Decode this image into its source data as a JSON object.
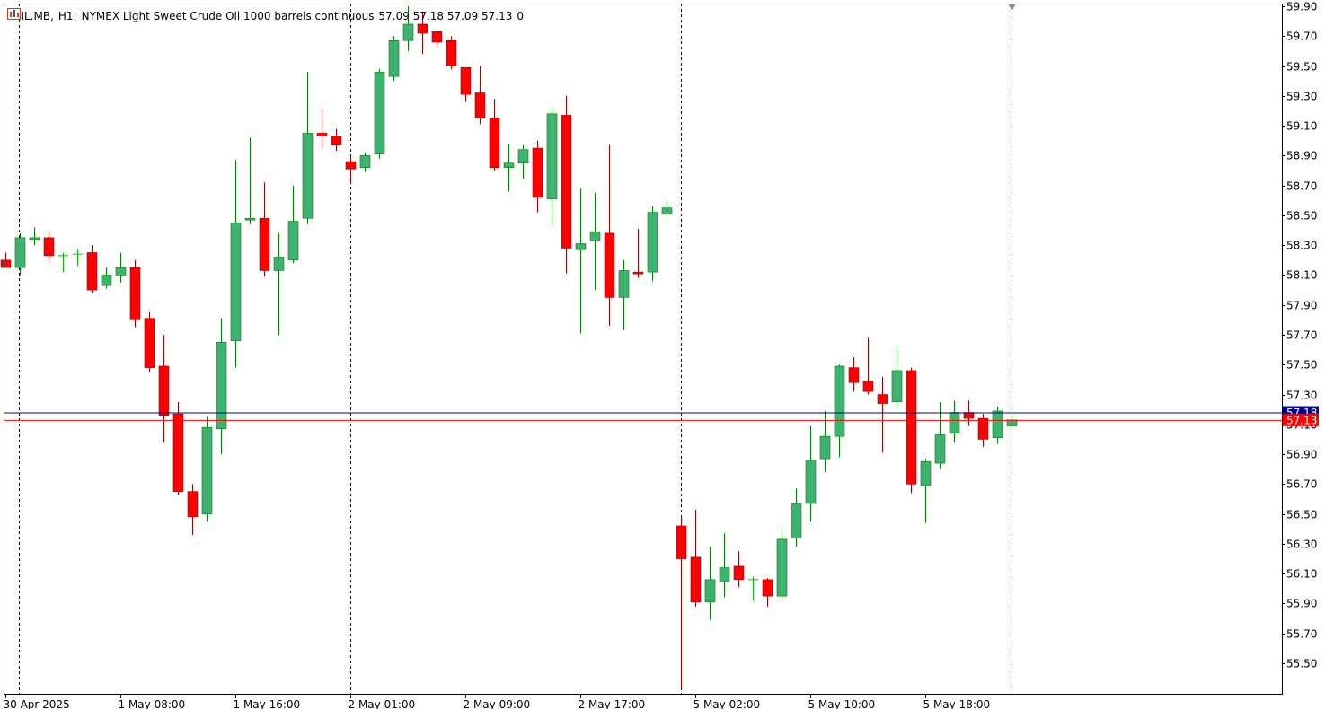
{
  "header": {
    "symbol": "OIL.MB,",
    "timeframe": "H1:",
    "description": "NYMEX Light Sweet Crude Oil 1000 barrels continuous",
    "ohlc": "57.09 57.18 57.09 57.13",
    "volume": "0",
    "icons": [
      "chart-window-icon",
      "indicator-list-icon"
    ]
  },
  "colors": {
    "background": "#ffffff",
    "bull_body": "#3cb371",
    "bear_body": "#ff0000",
    "wick_up": "#008000",
    "wick_down": "#a00000",
    "doji": "#00c000",
    "bid_line": "#ff0000",
    "ask_line": "#00008b",
    "axis": "#000000",
    "separator": "#000000"
  },
  "chart_data": {
    "type": "candlestick",
    "symbol": "OIL.MB",
    "timeframe": "H1",
    "ylim": [
      55.36,
      59.9
    ],
    "y_ticks": [
      "59.90",
      "59.70",
      "59.50",
      "59.30",
      "59.10",
      "58.90",
      "58.70",
      "58.50",
      "58.30",
      "58.10",
      "57.90",
      "57.70",
      "57.50",
      "57.30",
      "57.10",
      "56.90",
      "56.70",
      "56.50",
      "56.30",
      "56.10",
      "55.90",
      "55.70",
      "55.50"
    ],
    "x_ticks": [
      {
        "index": 0,
        "label": "30 Apr 2025"
      },
      {
        "index": 8,
        "label": "1 May 08:00"
      },
      {
        "index": 16,
        "label": "1 May 16:00"
      },
      {
        "index": 24,
        "label": "2 May 01:00"
      },
      {
        "index": 32,
        "label": "2 May 09:00"
      },
      {
        "index": 40,
        "label": "2 May 17:00"
      },
      {
        "index": 48,
        "label": "5 May 02:00"
      },
      {
        "index": 56,
        "label": "5 May 10:00"
      },
      {
        "index": 64,
        "label": "5 May 18:00"
      }
    ],
    "period_separators": [
      1,
      24,
      47,
      70
    ],
    "bid_price": {
      "value": 57.13,
      "label": "57.13"
    },
    "ask_price": {
      "value": 57.18,
      "label": "57.18"
    },
    "candles": [
      {
        "o": 58.2,
        "h": 58.25,
        "l": 58.15,
        "c": 58.15
      },
      {
        "o": 58.15,
        "h": 58.38,
        "l": 58.1,
        "c": 58.35
      },
      {
        "o": 58.34,
        "h": 58.42,
        "l": 58.3,
        "c": 58.35
      },
      {
        "o": 58.35,
        "h": 58.4,
        "l": 58.18,
        "c": 58.23
      },
      {
        "o": 58.23,
        "h": 58.25,
        "l": 58.12,
        "c": 58.23
      },
      {
        "o": 58.24,
        "h": 58.27,
        "l": 58.16,
        "c": 58.24
      },
      {
        "o": 58.25,
        "h": 58.3,
        "l": 57.98,
        "c": 58.0
      },
      {
        "o": 58.03,
        "h": 58.15,
        "l": 58.01,
        "c": 58.1
      },
      {
        "o": 58.1,
        "h": 58.25,
        "l": 58.05,
        "c": 58.15
      },
      {
        "o": 58.15,
        "h": 58.2,
        "l": 57.75,
        "c": 57.8
      },
      {
        "o": 57.81,
        "h": 57.85,
        "l": 57.45,
        "c": 57.48
      },
      {
        "o": 57.49,
        "h": 57.7,
        "l": 56.98,
        "c": 57.16
      },
      {
        "o": 57.17,
        "h": 57.25,
        "l": 56.63,
        "c": 56.65
      },
      {
        "o": 56.65,
        "h": 56.7,
        "l": 56.36,
        "c": 56.48
      },
      {
        "o": 56.5,
        "h": 57.15,
        "l": 56.45,
        "c": 57.08
      },
      {
        "o": 57.07,
        "h": 57.81,
        "l": 56.9,
        "c": 57.65
      },
      {
        "o": 57.66,
        "h": 58.87,
        "l": 57.48,
        "c": 58.45
      },
      {
        "o": 58.47,
        "h": 59.02,
        "l": 58.44,
        "c": 58.48
      },
      {
        "o": 58.48,
        "h": 58.72,
        "l": 58.09,
        "c": 58.13
      },
      {
        "o": 58.13,
        "h": 58.38,
        "l": 57.7,
        "c": 58.22
      },
      {
        "o": 58.2,
        "h": 58.7,
        "l": 58.18,
        "c": 58.46
      },
      {
        "o": 58.48,
        "h": 59.46,
        "l": 58.44,
        "c": 59.05
      },
      {
        "o": 59.05,
        "h": 59.2,
        "l": 58.95,
        "c": 59.03
      },
      {
        "o": 59.03,
        "h": 59.08,
        "l": 58.93,
        "c": 58.97
      },
      {
        "o": 58.86,
        "h": 58.9,
        "l": 58.71,
        "c": 58.81
      },
      {
        "o": 58.82,
        "h": 58.92,
        "l": 58.79,
        "c": 58.9
      },
      {
        "o": 58.91,
        "h": 59.48,
        "l": 58.88,
        "c": 59.46
      },
      {
        "o": 59.43,
        "h": 59.7,
        "l": 59.4,
        "c": 59.67
      },
      {
        "o": 59.67,
        "h": 59.9,
        "l": 59.6,
        "c": 59.78
      },
      {
        "o": 59.78,
        "h": 59.86,
        "l": 59.58,
        "c": 59.72
      },
      {
        "o": 59.73,
        "h": 59.73,
        "l": 59.62,
        "c": 59.66
      },
      {
        "o": 59.67,
        "h": 59.7,
        "l": 59.48,
        "c": 59.5
      },
      {
        "o": 59.49,
        "h": 59.48,
        "l": 59.26,
        "c": 59.31
      },
      {
        "o": 59.32,
        "h": 59.5,
        "l": 59.11,
        "c": 59.15
      },
      {
        "o": 59.15,
        "h": 59.28,
        "l": 58.8,
        "c": 58.82
      },
      {
        "o": 58.82,
        "h": 58.98,
        "l": 58.66,
        "c": 58.85
      },
      {
        "o": 58.85,
        "h": 58.97,
        "l": 58.74,
        "c": 58.94
      },
      {
        "o": 58.95,
        "h": 59.0,
        "l": 58.52,
        "c": 58.62
      },
      {
        "o": 58.61,
        "h": 59.22,
        "l": 58.43,
        "c": 59.18
      },
      {
        "o": 59.17,
        "h": 59.3,
        "l": 58.11,
        "c": 58.28
      },
      {
        "o": 58.27,
        "h": 58.68,
        "l": 57.71,
        "c": 58.31
      },
      {
        "o": 58.33,
        "h": 58.65,
        "l": 58.0,
        "c": 58.39
      },
      {
        "o": 58.38,
        "h": 58.97,
        "l": 57.76,
        "c": 57.95
      },
      {
        "o": 57.95,
        "h": 58.2,
        "l": 57.73,
        "c": 58.13
      },
      {
        "o": 58.12,
        "h": 58.41,
        "l": 58.08,
        "c": 58.11
      },
      {
        "o": 58.12,
        "h": 58.56,
        "l": 58.06,
        "c": 58.52
      },
      {
        "o": 58.51,
        "h": 58.6,
        "l": 58.49,
        "c": 58.55
      },
      {
        "o": 56.42,
        "h": 56.48,
        "l": 55.33,
        "c": 56.2
      },
      {
        "o": 56.21,
        "h": 56.53,
        "l": 55.88,
        "c": 55.91
      },
      {
        "o": 55.91,
        "h": 56.28,
        "l": 55.79,
        "c": 56.06
      },
      {
        "o": 56.05,
        "h": 56.37,
        "l": 55.94,
        "c": 56.14
      },
      {
        "o": 56.15,
        "h": 56.25,
        "l": 56.01,
        "c": 56.06
      },
      {
        "o": 56.06,
        "h": 56.08,
        "l": 55.92,
        "c": 56.06
      },
      {
        "o": 56.06,
        "h": 56.07,
        "l": 55.88,
        "c": 55.95
      },
      {
        "o": 55.95,
        "h": 56.4,
        "l": 55.93,
        "c": 56.33
      },
      {
        "o": 56.34,
        "h": 56.67,
        "l": 56.28,
        "c": 56.57
      },
      {
        "o": 56.57,
        "h": 57.09,
        "l": 56.45,
        "c": 56.86
      },
      {
        "o": 56.87,
        "h": 57.19,
        "l": 56.78,
        "c": 57.02
      },
      {
        "o": 57.02,
        "h": 57.5,
        "l": 56.88,
        "c": 57.49
      },
      {
        "o": 57.48,
        "h": 57.55,
        "l": 57.32,
        "c": 57.38
      },
      {
        "o": 57.39,
        "h": 57.68,
        "l": 57.3,
        "c": 57.32
      },
      {
        "o": 57.3,
        "h": 57.42,
        "l": 56.91,
        "c": 57.24
      },
      {
        "o": 57.25,
        "h": 57.62,
        "l": 57.2,
        "c": 57.46
      },
      {
        "o": 57.46,
        "h": 57.48,
        "l": 56.64,
        "c": 56.7
      },
      {
        "o": 56.69,
        "h": 56.87,
        "l": 56.44,
        "c": 56.85
      },
      {
        "o": 56.84,
        "h": 57.25,
        "l": 56.8,
        "c": 57.03
      },
      {
        "o": 57.04,
        "h": 57.26,
        "l": 56.98,
        "c": 57.18
      },
      {
        "o": 57.18,
        "h": 57.26,
        "l": 57.09,
        "c": 57.14
      },
      {
        "o": 57.14,
        "h": 57.17,
        "l": 56.95,
        "c": 57.0
      },
      {
        "o": 57.01,
        "h": 57.22,
        "l": 56.97,
        "c": 57.19
      },
      {
        "o": 57.09,
        "h": 57.18,
        "l": 57.09,
        "c": 57.13
      }
    ]
  }
}
